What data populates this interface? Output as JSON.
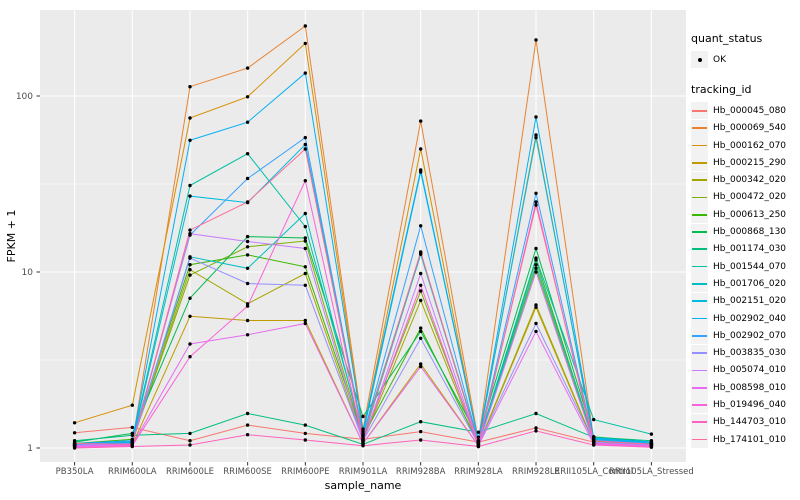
{
  "chart_data": {
    "type": "line",
    "title": "",
    "xlabel": "sample_name",
    "ylabel": "FPKM + 1",
    "y_scale": "log10",
    "ylim": [
      0.83,
      310
    ],
    "y_ticks": [
      1,
      10,
      100
    ],
    "y_minor_ticks": [
      3.1622776601,
      31.622776601
    ],
    "grid": "on",
    "panel_bg": "#EBEBEB",
    "grid_color": "#FFFFFF",
    "tick_color": "#333333",
    "tick_label_color": "#4D4D4D",
    "point_color": "#000000",
    "legend_key_bg": "#F2F2F2",
    "legend": {
      "position": "right",
      "quant_status_title": "quant_status",
      "quant_status_ok_label": "OK",
      "tracking_title": "tracking_id"
    },
    "categories": [
      "PB350LA",
      "RRIM600LA",
      "RRIM600LE",
      "RRIM600SE",
      "RRIM600PE",
      "RRIM901LA",
      "RRIM928BA",
      "RRIM928LA",
      "RRIM928LE",
      "RRII105LA_Control",
      "RRII105LA_Stressed"
    ],
    "series": [
      {
        "name": "Hb_000045_080",
        "color": "#F8766D",
        "values": [
          1.22,
          1.31,
          1.1,
          1.35,
          1.21,
          1.12,
          1.24,
          1.08,
          1.3,
          1.08,
          1.04
        ]
      },
      {
        "name": "Hb_000069_540",
        "color": "#EA8331",
        "values": [
          1.05,
          1.06,
          113,
          144,
          250,
          1.28,
          72,
          1.1,
          208,
          1.12,
          1.06
        ]
      },
      {
        "name": "Hb_000162_070",
        "color": "#D89000",
        "values": [
          1.39,
          1.75,
          75,
          99,
          199,
          1.22,
          50,
          1.07,
          60,
          1.1,
          1.05
        ]
      },
      {
        "name": "Hb_000215_290",
        "color": "#C09B00",
        "values": [
          1.02,
          1.04,
          5.6,
          5.3,
          5.3,
          1.06,
          3.0,
          1.03,
          6.3,
          1.06,
          1.03
        ]
      },
      {
        "name": "Hb_000342_020",
        "color": "#A3A500",
        "values": [
          1.04,
          1.08,
          10.3,
          6.6,
          9.8,
          1.1,
          6.9,
          1.04,
          6.5,
          1.07,
          1.04
        ]
      },
      {
        "name": "Hb_000472_020",
        "color": "#7CAE00",
        "values": [
          1.03,
          1.09,
          9.6,
          13.9,
          15.0,
          1.13,
          7.8,
          1.05,
          10.5,
          1.09,
          1.05
        ]
      },
      {
        "name": "Hb_000613_250",
        "color": "#39B600",
        "values": [
          1.06,
          1.12,
          11.0,
          12.5,
          10.7,
          1.16,
          4.8,
          1.06,
          11.7,
          1.11,
          1.06
        ]
      },
      {
        "name": "Hb_000868_130",
        "color": "#00BB4E",
        "values": [
          1.08,
          1.21,
          7.1,
          15.9,
          15.6,
          1.51,
          4.6,
          1.15,
          13.6,
          1.16,
          1.08
        ]
      },
      {
        "name": "Hb_001174_030",
        "color": "#00BF7D",
        "values": [
          1.1,
          1.18,
          1.21,
          1.57,
          1.35,
          1.05,
          1.41,
          1.23,
          1.57,
          1.15,
          1.1
        ]
      },
      {
        "name": "Hb_001544_070",
        "color": "#00C1A3",
        "values": [
          1.05,
          1.1,
          31,
          47,
          18.1,
          1.18,
          12.8,
          1.08,
          12.0,
          1.45,
          1.2
        ]
      },
      {
        "name": "Hb_001706_020",
        "color": "#00BFC4",
        "values": [
          1.03,
          1.07,
          12.2,
          10.5,
          21.5,
          1.12,
          12.6,
          1.06,
          11.0,
          1.12,
          1.06
        ]
      },
      {
        "name": "Hb_002151_020",
        "color": "#00BAE0",
        "values": [
          1.04,
          1.08,
          27,
          24.8,
          53,
          1.2,
          37,
          1.09,
          58,
          1.13,
          1.07
        ]
      },
      {
        "name": "Hb_002902_040",
        "color": "#00B0F6",
        "values": [
          1.06,
          1.1,
          56,
          71,
          135,
          1.25,
          38,
          1.1,
          76,
          1.14,
          1.08
        ]
      },
      {
        "name": "Hb_002902_070",
        "color": "#35A2FF",
        "values": [
          1.05,
          1.09,
          16.2,
          34,
          58,
          1.17,
          18.3,
          1.07,
          28,
          1.11,
          1.06
        ]
      },
      {
        "name": "Hb_003835_030",
        "color": "#9590FF",
        "values": [
          1.04,
          1.06,
          12.0,
          8.6,
          8.4,
          1.1,
          4.2,
          1.05,
          5.1,
          1.08,
          1.04
        ]
      },
      {
        "name": "Hb_005074_010",
        "color": "#C77CFF",
        "values": [
          1.03,
          1.05,
          16.5,
          14.9,
          13.6,
          1.08,
          9.8,
          1.04,
          10.0,
          1.07,
          1.03
        ]
      },
      {
        "name": "Hb_008598_010",
        "color": "#E76BF3",
        "values": [
          1.02,
          1.04,
          3.9,
          4.4,
          5.1,
          1.06,
          2.9,
          1.03,
          4.6,
          1.05,
          1.02
        ]
      },
      {
        "name": "Hb_019496_040",
        "color": "#FA62DB",
        "values": [
          1.01,
          1.03,
          3.3,
          6.4,
          33,
          1.09,
          8.4,
          1.02,
          25,
          1.06,
          1.03
        ]
      },
      {
        "name": "Hb_144703_010",
        "color": "#FF62BC",
        "values": [
          1.0,
          1.02,
          1.04,
          1.19,
          1.11,
          1.03,
          1.11,
          1.02,
          1.25,
          1.04,
          1.01
        ]
      },
      {
        "name": "Hb_174101_010",
        "color": "#FF6A98",
        "values": [
          1.06,
          1.05,
          17.3,
          25,
          50,
          1.14,
          13.0,
          1.05,
          24,
          1.1,
          1.05
        ]
      }
    ]
  }
}
